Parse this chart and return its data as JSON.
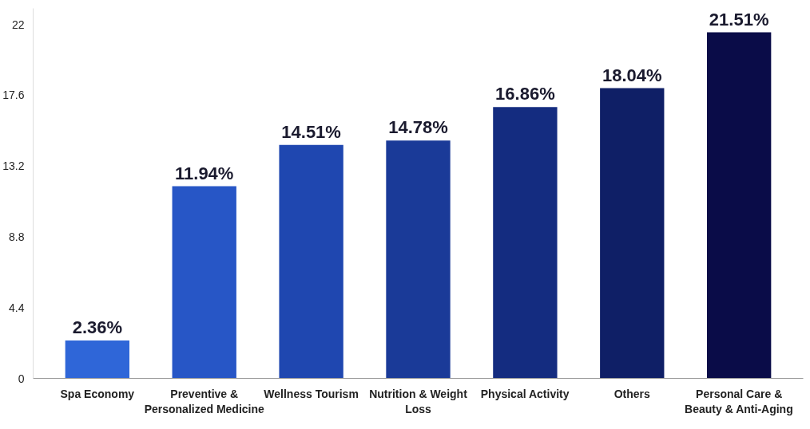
{
  "chart_data": {
    "type": "bar",
    "categories": [
      "Spa Economy",
      "Preventive & Personalized Medicine",
      "Wellness Tourism",
      "Nutrition & Weight Loss",
      "Physical Activity",
      "Others",
      "Personal Care & Beauty & Anti-Aging"
    ],
    "values": [
      2.36,
      11.94,
      14.51,
      14.78,
      16.86,
      18.04,
      21.51
    ],
    "colors": [
      "#2f66d8",
      "#2756c6",
      "#1f47b0",
      "#1a3a98",
      "#142c80",
      "#0f1f66",
      "#0a0c48"
    ],
    "value_labels": [
      "2.36%",
      "11.94%",
      "14.51%",
      "14.78%",
      "16.86%",
      "18.04%",
      "21.51%"
    ],
    "ylim": [
      0,
      23
    ],
    "yticks": [
      0,
      4.4,
      8.8,
      13.2,
      17.6,
      22
    ],
    "grid": false
  }
}
